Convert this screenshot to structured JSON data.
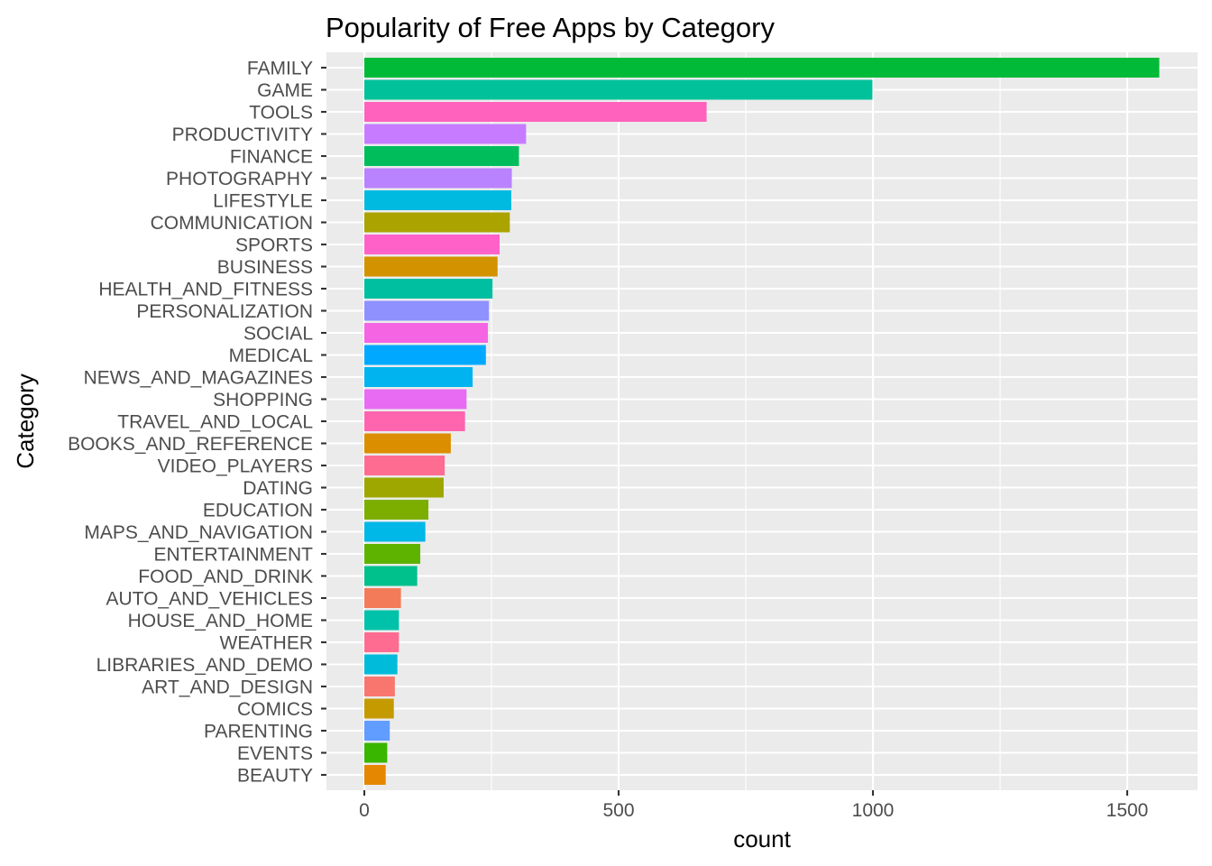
{
  "chart_data": {
    "type": "bar",
    "orientation": "horizontal",
    "title": "Popularity of Free Apps by Category",
    "xlabel": "count",
    "ylabel": "Category",
    "xlim": [
      -78,
      1600
    ],
    "x_ticks": [
      0,
      500,
      1000,
      1500
    ],
    "grid": true,
    "legend": "none",
    "categories": [
      "FAMILY",
      "GAME",
      "TOOLS",
      "PRODUCTIVITY",
      "FINANCE",
      "PHOTOGRAPHY",
      "LIFESTYLE",
      "COMMUNICATION",
      "SPORTS",
      "BUSINESS",
      "HEALTH_AND_FITNESS",
      "PERSONALIZATION",
      "SOCIAL",
      "MEDICAL",
      "NEWS_AND_MAGAZINES",
      "SHOPPING",
      "TRAVEL_AND_LOCAL",
      "BOOKS_AND_REFERENCE",
      "VIDEO_PLAYERS",
      "DATING",
      "EDUCATION",
      "MAPS_AND_NAVIGATION",
      "ENTERTAINMENT",
      "FOOD_AND_DRINK",
      "AUTO_AND_VEHICLES",
      "HOUSE_AND_HOME",
      "WEATHER",
      "LIBRARIES_AND_DEMO",
      "ART_AND_DESIGN",
      "COMICS",
      "PARENTING",
      "EVENTS",
      "BEAUTY"
    ],
    "values": [
      1563,
      999,
      673,
      318,
      304,
      290,
      289,
      286,
      266,
      262,
      252,
      245,
      243,
      239,
      213,
      201,
      198,
      170,
      158,
      156,
      126,
      120,
      110,
      104,
      72,
      68,
      68,
      65,
      60,
      58,
      50,
      45,
      42
    ],
    "colors": [
      "#00BA38",
      "#00C19A",
      "#FF62BC",
      "#C77CFF",
      "#00BD5C",
      "#B983FF",
      "#00BAE0",
      "#ABA300",
      "#FF61C9",
      "#D39200",
      "#00BFA0",
      "#8F91FF",
      "#F564E3",
      "#00A9FF",
      "#00B4F0",
      "#E76BF3",
      "#FF65AE",
      "#DB8E00",
      "#FF6C91",
      "#9DA700",
      "#7CAE00",
      "#00B8E7",
      "#5EB300",
      "#00C08B",
      "#F37B59",
      "#00C1A9",
      "#FF6C91",
      "#00BBDA",
      "#F8766D",
      "#C49A00",
      "#619CFF",
      "#39B600",
      "#E58700"
    ]
  }
}
